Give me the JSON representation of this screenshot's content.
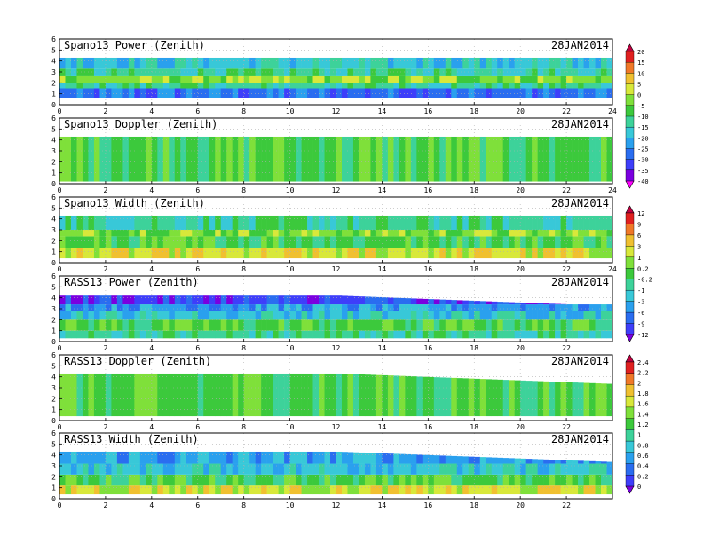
{
  "chart_data": [
    {
      "type": "heatmap",
      "title": "Spano13 Power (Zenith)",
      "date": "28JAN2014",
      "x_ticks": [
        "0",
        "2",
        "4",
        "6",
        "8",
        "10",
        "12",
        "14",
        "16",
        "18",
        "20",
        "22",
        "24"
      ],
      "y_ticks": [
        "0",
        "1",
        "2",
        "3",
        "4",
        "5",
        "6"
      ],
      "xlim": [
        0,
        24
      ],
      "ylim": [
        0,
        6
      ],
      "colorbar_ticks": [
        "20",
        "15",
        "10",
        "5",
        "0",
        "-5",
        "-10",
        "-15",
        "-20",
        "-25",
        "-30",
        "-35",
        "-40"
      ],
      "colormap": [
        "#ff00ff",
        "#7a00e0",
        "#3e3efa",
        "#2a6df0",
        "#2aa0ee",
        "#38c8d8",
        "#3dd29a",
        "#3cc93c",
        "#7fe03a",
        "#d8e83a",
        "#f0c030",
        "#f07828",
        "#e02020",
        "#c00040"
      ],
      "layers": [
        {
          "h0": 0.6,
          "h1": 1.5,
          "cls": 3
        },
        {
          "h0": 1.5,
          "h1": 2.0,
          "cls": 6
        },
        {
          "h0": 2.0,
          "h1": 2.6,
          "cls": 8
        },
        {
          "h0": 2.6,
          "h1": 3.3,
          "cls": 6
        },
        {
          "h0": 3.3,
          "h1": 4.3,
          "cls": 5
        }
      ]
    },
    {
      "type": "heatmap",
      "title": "Spano13 Doppler (Zenith)",
      "date": "28JAN2014",
      "x_ticks": [
        "0",
        "2",
        "4",
        "6",
        "8",
        "10",
        "12",
        "14",
        "16",
        "18",
        "20",
        "22",
        "24"
      ],
      "y_ticks": [
        "0",
        "1",
        "2",
        "3",
        "4",
        "5",
        "6"
      ],
      "xlim": [
        0,
        24
      ],
      "ylim": [
        0,
        6
      ],
      "layers": [
        {
          "h0": 0.2,
          "h1": 4.3,
          "cls": 7
        }
      ]
    },
    {
      "type": "heatmap",
      "title": "Spano13 Width (Zenith)",
      "date": "28JAN2014",
      "x_ticks": [
        "0",
        "2",
        "4",
        "6",
        "8",
        "10",
        "12",
        "14",
        "16",
        "18",
        "20",
        "22",
        "24"
      ],
      "y_ticks": [
        "0",
        "1",
        "2",
        "3",
        "4",
        "5",
        "6"
      ],
      "xlim": [
        0,
        24
      ],
      "ylim": [
        0,
        6
      ],
      "colorbar_ticks": [
        "12",
        "9",
        "6",
        "3",
        "1",
        "0.2",
        "-0.2",
        "-1",
        "-3",
        "-6",
        "-9",
        "-12"
      ],
      "colormap": [
        "#7a00e0",
        "#3e3efa",
        "#2a6df0",
        "#2aa0ee",
        "#38c8d8",
        "#3dd29a",
        "#3cc93c",
        "#7fe03a",
        "#d8e83a",
        "#f0c030",
        "#f07828",
        "#e02020",
        "#c00040"
      ],
      "layers": [
        {
          "h0": 0.4,
          "h1": 1.3,
          "cls": 8
        },
        {
          "h0": 1.3,
          "h1": 2.4,
          "cls": 6
        },
        {
          "h0": 2.4,
          "h1": 3.0,
          "cls": 7
        },
        {
          "h0": 3.0,
          "h1": 4.3,
          "cls": 5
        }
      ]
    },
    {
      "type": "heatmap",
      "title": "RASS13 Power (Zenith)",
      "date": "28JAN2014",
      "x_ticks": [
        "0",
        "2",
        "4",
        "6",
        "8",
        "10",
        "12",
        "14",
        "16",
        "18",
        "20",
        "22"
      ],
      "y_ticks": [
        "0",
        "1",
        "2",
        "3",
        "4",
        "5",
        "6"
      ],
      "xlim": [
        0,
        24
      ],
      "ylim": [
        0,
        6
      ],
      "layers": [
        {
          "h0": 0.3,
          "h1": 1.0,
          "cls": 5
        },
        {
          "h0": 1.0,
          "h1": 2.0,
          "cls": 6
        },
        {
          "h0": 2.0,
          "h1": 2.8,
          "cls": 4
        },
        {
          "h0": 2.8,
          "h1": 3.4,
          "cls": 3
        },
        {
          "h0": 3.4,
          "h1": 4.2,
          "cls": 1
        }
      ]
    },
    {
      "type": "heatmap",
      "title": "RASS13 Doppler (Zenith)",
      "date": "28JAN2014",
      "x_ticks": [
        "0",
        "2",
        "4",
        "6",
        "8",
        "10",
        "12",
        "14",
        "16",
        "18",
        "20",
        "22"
      ],
      "y_ticks": [
        "0",
        "1",
        "2",
        "3",
        "4",
        "5",
        "6"
      ],
      "xlim": [
        0,
        24
      ],
      "ylim": [
        0,
        6
      ],
      "colorbar_ticks": [
        "2.4",
        "2.2",
        "2",
        "1.8",
        "1.6",
        "1.4",
        "1.2",
        "1",
        "0.8",
        "0.6",
        "0.4",
        "0.2",
        "0"
      ],
      "colormap": [
        "#7a00e0",
        "#3e3efa",
        "#2a6df0",
        "#2aa0ee",
        "#38c8d8",
        "#3dd29a",
        "#3cc93c",
        "#7fe03a",
        "#d8e83a",
        "#f0c030",
        "#f07828",
        "#e02020",
        "#c00040"
      ],
      "layers": [
        {
          "h0": 0.4,
          "h1": 4.3,
          "cls": 6
        }
      ]
    },
    {
      "type": "heatmap",
      "title": "RASS13 Width (Zenith)",
      "date": "28JAN2014",
      "x_ticks": [
        "0",
        "2",
        "4",
        "6",
        "8",
        "10",
        "12",
        "14",
        "16",
        "18",
        "20",
        "22"
      ],
      "y_ticks": [
        "0",
        "1",
        "2",
        "3",
        "4",
        "5",
        "6"
      ],
      "xlim": [
        0,
        24
      ],
      "ylim": [
        0,
        6
      ],
      "layers": [
        {
          "h0": 0.4,
          "h1": 1.2,
          "cls": 8
        },
        {
          "h0": 1.2,
          "h1": 2.2,
          "cls": 6
        },
        {
          "h0": 2.2,
          "h1": 3.2,
          "cls": 4
        },
        {
          "h0": 3.2,
          "h1": 4.3,
          "cls": 3
        }
      ]
    }
  ]
}
